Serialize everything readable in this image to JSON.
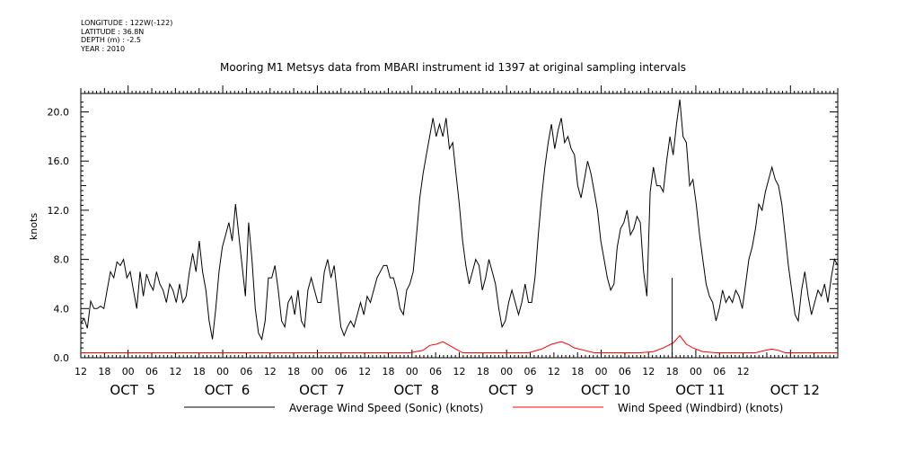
{
  "meta": {
    "longitude": "LONGITUDE : 122W(-122)",
    "latitude": "LATITUDE : 36.8N",
    "depth": "DEPTH (m) : -2.5",
    "year": "YEAR : 2010"
  },
  "chart_data": {
    "type": "line",
    "title": "Mooring M1 Metsys data from MBARI instrument id 1397 at original sampling intervals",
    "ylabel": "knots",
    "ylim": [
      0,
      21.5
    ],
    "yticks": [
      "0.0",
      "4.0",
      "8.0",
      "12.0",
      "16.0",
      "20.0"
    ],
    "x_hour_labels": [
      "12",
      "18",
      "00",
      "06",
      "12",
      "18",
      "00",
      "06",
      "12",
      "18",
      "00",
      "06",
      "12",
      "18",
      "00",
      "06",
      "12",
      "18",
      "00",
      "06",
      "12",
      "18",
      "00",
      "06",
      "12",
      "18",
      "00",
      "06",
      "12"
    ],
    "x_day_labels": [
      "OCT  5",
      "OCT  6",
      "OCT  7",
      "OCT  8",
      "OCT  9",
      "OCT 10",
      "OCT 11",
      "OCT 12"
    ],
    "x_hours_start": "OCT 4 12:00",
    "x_hours_end": "OCT 12 12:00",
    "series": [
      {
        "name": "Average Wind Speed (Sonic) (knots)",
        "color": "#000000",
        "points": [
          [
            0,
            2.8
          ],
          [
            1,
            3.2
          ],
          [
            2,
            2.4
          ],
          [
            3,
            4.6
          ],
          [
            4,
            4.0
          ],
          [
            5,
            4.0
          ],
          [
            6,
            4.2
          ],
          [
            7,
            4.0
          ],
          [
            8,
            5.5
          ],
          [
            9,
            7.0
          ],
          [
            10,
            6.5
          ],
          [
            11,
            7.8
          ],
          [
            12,
            7.5
          ],
          [
            13,
            8.0
          ],
          [
            14,
            6.5
          ],
          [
            15,
            7.0
          ],
          [
            16,
            5.5
          ],
          [
            17,
            4.0
          ],
          [
            18,
            7.0
          ],
          [
            19,
            5.0
          ],
          [
            20,
            6.8
          ],
          [
            21,
            6.0
          ],
          [
            22,
            5.5
          ],
          [
            23,
            7.0
          ],
          [
            24,
            6.0
          ],
          [
            25,
            5.5
          ],
          [
            26,
            4.5
          ],
          [
            27,
            6.0
          ],
          [
            28,
            5.5
          ],
          [
            29,
            4.5
          ],
          [
            30,
            6.0
          ],
          [
            31,
            4.5
          ],
          [
            32,
            5.0
          ],
          [
            33,
            7.0
          ],
          [
            34,
            8.5
          ],
          [
            35,
            7.0
          ],
          [
            36,
            9.5
          ],
          [
            37,
            7.0
          ],
          [
            38,
            5.5
          ],
          [
            39,
            3.0
          ],
          [
            40,
            1.5
          ],
          [
            41,
            4.0
          ],
          [
            42,
            7.0
          ],
          [
            43,
            9.0
          ],
          [
            44,
            10.0
          ],
          [
            45,
            11.0
          ],
          [
            46,
            9.5
          ],
          [
            47,
            12.5
          ],
          [
            48,
            10.0
          ],
          [
            49,
            7.5
          ],
          [
            50,
            5.0
          ],
          [
            51,
            11.0
          ],
          [
            52,
            8.0
          ],
          [
            53,
            4.0
          ],
          [
            54,
            2.0
          ],
          [
            55,
            1.5
          ],
          [
            56,
            3.0
          ],
          [
            57,
            6.5
          ],
          [
            58,
            6.5
          ],
          [
            59,
            7.5
          ],
          [
            60,
            5.5
          ],
          [
            61,
            3.0
          ],
          [
            62,
            2.5
          ],
          [
            63,
            4.5
          ],
          [
            64,
            5.0
          ],
          [
            65,
            3.5
          ],
          [
            66,
            5.5
          ],
          [
            67,
            3.0
          ],
          [
            68,
            2.5
          ],
          [
            69,
            5.5
          ],
          [
            70,
            6.5
          ],
          [
            71,
            5.5
          ],
          [
            72,
            4.5
          ],
          [
            73,
            4.5
          ],
          [
            74,
            7.0
          ],
          [
            75,
            8.0
          ],
          [
            76,
            6.5
          ],
          [
            77,
            7.5
          ],
          [
            78,
            5.0
          ],
          [
            79,
            2.5
          ],
          [
            80,
            1.8
          ],
          [
            81,
            2.5
          ],
          [
            82,
            3.0
          ],
          [
            83,
            2.5
          ],
          [
            84,
            3.5
          ],
          [
            85,
            4.5
          ],
          [
            86,
            3.5
          ],
          [
            87,
            5.0
          ],
          [
            88,
            4.5
          ],
          [
            89,
            5.5
          ],
          [
            90,
            6.5
          ],
          [
            91,
            7.0
          ],
          [
            92,
            7.5
          ],
          [
            93,
            7.5
          ],
          [
            94,
            6.5
          ],
          [
            95,
            6.5
          ],
          [
            96,
            5.5
          ],
          [
            97,
            4.0
          ],
          [
            98,
            3.5
          ],
          [
            99,
            5.5
          ],
          [
            100,
            6.0
          ],
          [
            101,
            7.0
          ],
          [
            102,
            10.0
          ],
          [
            103,
            13.0
          ],
          [
            104,
            15.0
          ],
          [
            105,
            16.5
          ],
          [
            106,
            18.0
          ],
          [
            107,
            19.5
          ],
          [
            108,
            18.0
          ],
          [
            109,
            19.0
          ],
          [
            110,
            18.0
          ],
          [
            111,
            19.5
          ],
          [
            112,
            17.0
          ],
          [
            113,
            17.5
          ],
          [
            114,
            15.0
          ],
          [
            115,
            12.5
          ],
          [
            116,
            9.5
          ],
          [
            117,
            7.5
          ],
          [
            118,
            6.0
          ],
          [
            119,
            7.0
          ],
          [
            120,
            8.0
          ],
          [
            121,
            7.5
          ],
          [
            122,
            5.5
          ],
          [
            123,
            6.5
          ],
          [
            124,
            8.0
          ],
          [
            125,
            7.0
          ],
          [
            126,
            6.0
          ],
          [
            127,
            4.0
          ],
          [
            128,
            2.5
          ],
          [
            129,
            3.0
          ],
          [
            130,
            4.5
          ],
          [
            131,
            5.5
          ],
          [
            132,
            4.5
          ],
          [
            133,
            3.5
          ],
          [
            134,
            4.5
          ],
          [
            135,
            6.0
          ],
          [
            136,
            4.5
          ],
          [
            137,
            4.5
          ],
          [
            138,
            6.5
          ],
          [
            139,
            10.0
          ],
          [
            140,
            13.0
          ],
          [
            141,
            15.5
          ],
          [
            142,
            17.5
          ],
          [
            143,
            19.0
          ],
          [
            144,
            17.0
          ],
          [
            145,
            18.5
          ],
          [
            146,
            19.5
          ],
          [
            147,
            17.5
          ],
          [
            148,
            18.0
          ],
          [
            149,
            17.0
          ],
          [
            150,
            16.5
          ],
          [
            151,
            14.0
          ],
          [
            152,
            13.0
          ],
          [
            153,
            14.5
          ],
          [
            154,
            16.0
          ],
          [
            155,
            15.0
          ],
          [
            156,
            13.5
          ],
          [
            157,
            12.0
          ],
          [
            158,
            9.5
          ],
          [
            159,
            8.0
          ],
          [
            160,
            6.5
          ],
          [
            161,
            5.5
          ],
          [
            162,
            6.0
          ],
          [
            163,
            9.0
          ],
          [
            164,
            10.5
          ],
          [
            165,
            11.0
          ],
          [
            166,
            12.0
          ],
          [
            167,
            10.0
          ],
          [
            168,
            10.5
          ],
          [
            169,
            11.5
          ],
          [
            170,
            11.0
          ],
          [
            171,
            7.0
          ],
          [
            172,
            5.0
          ],
          [
            173,
            13.5
          ],
          [
            174,
            15.5
          ],
          [
            175,
            14.0
          ],
          [
            176,
            14.0
          ],
          [
            177,
            13.5
          ],
          [
            178,
            16.0
          ],
          [
            179,
            18.0
          ],
          [
            180,
            16.5
          ],
          [
            181,
            19.0
          ],
          [
            182,
            21.0
          ],
          [
            183,
            18.0
          ],
          [
            184,
            17.5
          ],
          [
            185,
            14.0
          ],
          [
            186,
            14.5
          ],
          [
            187,
            12.5
          ],
          [
            188,
            10.0
          ],
          [
            189,
            8.0
          ],
          [
            190,
            6.0
          ],
          [
            191,
            5.0
          ],
          [
            192,
            4.5
          ],
          [
            193,
            3.0
          ],
          [
            194,
            4.0
          ],
          [
            195,
            5.5
          ],
          [
            196,
            4.5
          ],
          [
            197,
            5.0
          ],
          [
            198,
            4.5
          ],
          [
            199,
            5.5
          ],
          [
            200,
            5.0
          ],
          [
            201,
            4.0
          ],
          [
            202,
            6.0
          ],
          [
            203,
            8.0
          ],
          [
            204,
            9.0
          ],
          [
            205,
            10.5
          ],
          [
            206,
            12.5
          ],
          [
            207,
            12.0
          ],
          [
            208,
            13.5
          ],
          [
            209,
            14.5
          ],
          [
            210,
            15.5
          ],
          [
            211,
            14.5
          ],
          [
            212,
            14.0
          ],
          [
            213,
            12.5
          ],
          [
            214,
            10.0
          ],
          [
            215,
            7.5
          ],
          [
            216,
            5.5
          ],
          [
            217,
            3.5
          ],
          [
            218,
            3.0
          ],
          [
            219,
            5.5
          ],
          [
            220,
            7.0
          ],
          [
            221,
            5.0
          ],
          [
            222,
            3.5
          ],
          [
            223,
            4.5
          ],
          [
            224,
            5.5
          ],
          [
            225,
            5.0
          ],
          [
            226,
            6.0
          ],
          [
            227,
            4.5
          ],
          [
            228,
            6.5
          ],
          [
            229,
            8.0
          ],
          [
            230,
            7.5
          ]
        ]
      },
      {
        "name": "Wind Speed (Windbird) (knots)",
        "color": "#ff0000",
        "points": [
          [
            0,
            0.4
          ],
          [
            10,
            0.4
          ],
          [
            20,
            0.4
          ],
          [
            30,
            0.4
          ],
          [
            40,
            0.4
          ],
          [
            50,
            0.4
          ],
          [
            60,
            0.4
          ],
          [
            70,
            0.4
          ],
          [
            80,
            0.4
          ],
          [
            90,
            0.4
          ],
          [
            100,
            0.4
          ],
          [
            104,
            0.6
          ],
          [
            106,
            1.0
          ],
          [
            108,
            1.1
          ],
          [
            110,
            1.3
          ],
          [
            112,
            1.0
          ],
          [
            114,
            0.7
          ],
          [
            116,
            0.4
          ],
          [
            126,
            0.4
          ],
          [
            136,
            0.4
          ],
          [
            140,
            0.7
          ],
          [
            143,
            1.1
          ],
          [
            146,
            1.3
          ],
          [
            148,
            1.1
          ],
          [
            150,
            0.8
          ],
          [
            153,
            0.6
          ],
          [
            156,
            0.4
          ],
          [
            170,
            0.4
          ],
          [
            174,
            0.5
          ],
          [
            177,
            0.8
          ],
          [
            180,
            1.2
          ],
          [
            182,
            1.8
          ],
          [
            184,
            1.1
          ],
          [
            186,
            0.8
          ],
          [
            189,
            0.5
          ],
          [
            193,
            0.4
          ],
          [
            205,
            0.4
          ],
          [
            208,
            0.6
          ],
          [
            210,
            0.7
          ],
          [
            212,
            0.6
          ],
          [
            214,
            0.4
          ],
          [
            230,
            0.4
          ]
        ]
      }
    ],
    "legend": [
      "Average Wind Speed (Sonic) (knots)",
      "Wind Speed (Windbird) (knots)"
    ],
    "legend_position": "bottom"
  }
}
